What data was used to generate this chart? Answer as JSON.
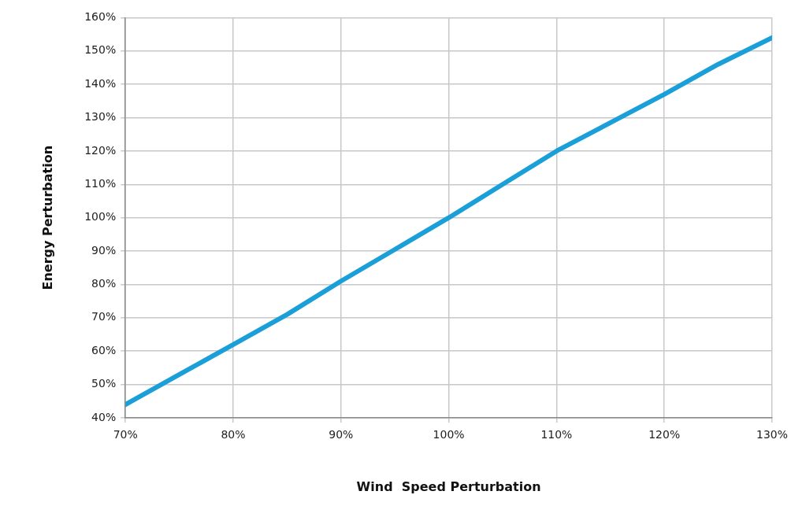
{
  "chart_data": {
    "type": "line",
    "xlabel": "Wind  Speed Perturbation",
    "ylabel": "Energy Perturbation",
    "x": [
      70,
      75,
      80,
      85,
      90,
      95,
      100,
      105,
      110,
      115,
      120,
      125,
      130
    ],
    "series": [
      {
        "color": "#1a9fd9",
        "values": [
          44,
          53,
          62,
          71,
          81,
          90.5,
          100,
          110,
          120,
          128.5,
          137,
          146,
          154
        ]
      }
    ],
    "xlim": [
      70,
      130
    ],
    "xticks": [
      {
        "value": 70,
        "label": "70%"
      },
      {
        "value": 80,
        "label": "80%"
      },
      {
        "value": 90,
        "label": "90%"
      },
      {
        "value": 100,
        "label": "100%"
      },
      {
        "value": 110,
        "label": "110%"
      },
      {
        "value": 120,
        "label": "120%"
      },
      {
        "value": 130,
        "label": "130%"
      }
    ],
    "ylim": [
      40,
      160
    ],
    "yticks": [
      {
        "value": 40,
        "label": "40%"
      },
      {
        "value": 50,
        "label": "50%"
      },
      {
        "value": 60,
        "label": "60%"
      },
      {
        "value": 70,
        "label": "70%"
      },
      {
        "value": 80,
        "label": "80%"
      },
      {
        "value": 90,
        "label": "90%"
      },
      {
        "value": 100,
        "label": "100%"
      },
      {
        "value": 110,
        "label": "110%"
      },
      {
        "value": 120,
        "label": "120%"
      },
      {
        "value": 130,
        "label": "130%"
      },
      {
        "value": 140,
        "label": "140%"
      },
      {
        "value": 150,
        "label": "150%"
      },
      {
        "value": 160,
        "label": "160%"
      }
    ],
    "grid": true,
    "marker": "none",
    "line_style": "solid"
  }
}
